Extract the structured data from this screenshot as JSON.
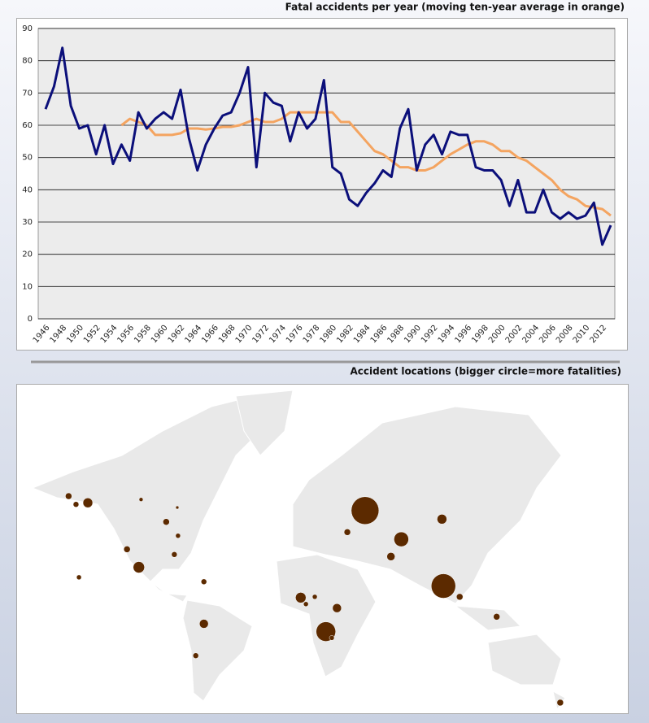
{
  "chart_data": [
    {
      "type": "line",
      "title": "Fatal accidents per year (moving ten-year average in orange)",
      "categories": [
        "1946",
        null,
        "1948",
        null,
        "1950",
        null,
        "1952",
        null,
        "1954",
        null,
        "1956",
        null,
        "1958",
        null,
        "1960",
        null,
        "1962",
        null,
        "1964",
        null,
        "1966",
        null,
        "1968",
        null,
        "1970",
        null,
        "1972",
        null,
        "1974",
        null,
        "1976",
        null,
        "1978",
        null,
        "1980",
        null,
        "1982",
        null,
        "1984",
        null,
        "1986",
        null,
        "1988",
        null,
        "1990",
        null,
        "1992",
        null,
        "1994",
        null,
        "1996",
        null,
        "1998",
        null,
        "2000",
        null,
        "2002",
        null,
        "2004",
        null,
        "2006",
        null,
        "2008",
        null,
        "2010",
        null,
        "2012",
        null
      ],
      "series": [
        {
          "color": "#0b0f7a",
          "values": [
            65,
            72,
            84,
            66,
            59,
            60,
            51,
            60,
            48,
            54,
            49,
            64,
            59,
            62,
            64,
            62,
            71,
            56,
            46,
            54,
            59,
            63,
            64,
            70,
            78,
            47,
            70,
            67,
            66,
            55,
            64,
            59,
            62,
            74,
            47,
            45,
            37,
            35,
            39,
            42,
            46,
            44,
            59,
            65,
            46,
            54,
            57,
            51,
            58,
            57,
            57,
            47,
            46,
            46,
            43,
            35,
            43,
            33,
            33,
            40,
            33,
            31,
            33,
            31,
            32,
            36,
            23,
            29
          ]
        },
        {
          "color": "#f4a460",
          "values": [
            null,
            null,
            null,
            null,
            null,
            null,
            null,
            null,
            null,
            60,
            62,
            61,
            60,
            57,
            57,
            57,
            57.5,
            59,
            59,
            58.7,
            59,
            59.5,
            59.5,
            60,
            61,
            62,
            61,
            61,
            62,
            64,
            64,
            64,
            64,
            64,
            64,
            61,
            61,
            58,
            55,
            52,
            51,
            49,
            47,
            47,
            46,
            46,
            47,
            49,
            51,
            52.5,
            54,
            55,
            55,
            54,
            52,
            52,
            50,
            49,
            47,
            45,
            43,
            40,
            38,
            37,
            35,
            34.5,
            34,
            32
          ]
        }
      ],
      "ylim": [
        0,
        90
      ],
      "yticks": [
        0,
        10,
        20,
        30,
        40,
        50,
        60,
        70,
        80,
        90
      ],
      "grid": true
    },
    {
      "type": "bubble-map",
      "title": "Accident locations (bigger circle=more fatalities)",
      "color": "#5c2a00",
      "lon": [
        -163,
        -158,
        -150,
        -114,
        -89.5,
        -97,
        -89,
        -123.5,
        -91.5,
        -115.5,
        -156,
        -71.5,
        -71.5,
        -77,
        37.5,
        89.5,
        25.5,
        62,
        55,
        90.5,
        101.5,
        126.5,
        -6,
        3.5,
        -2.5,
        18.5,
        11,
        15,
        169.5
      ],
      "lat": [
        63,
        60.5,
        61,
        62,
        59.5,
        54.5,
        49,
        43,
        40.5,
        34,
        28.5,
        26,
        0,
        -20,
        58.5,
        55.5,
        50.5,
        47.5,
        39.5,
        23.5,
        17,
        4.5,
        16.5,
        17,
        12.5,
        10,
        -5,
        -9,
        -45
      ],
      "values": [
        16,
        12,
        36,
        6,
        4,
        16,
        9,
        16,
        12,
        49,
        9,
        12,
        30,
        12,
        289,
        36,
        16,
        81,
        25,
        225,
        16,
        16,
        42,
        9,
        9,
        30,
        144,
        9,
        16
      ]
    }
  ]
}
